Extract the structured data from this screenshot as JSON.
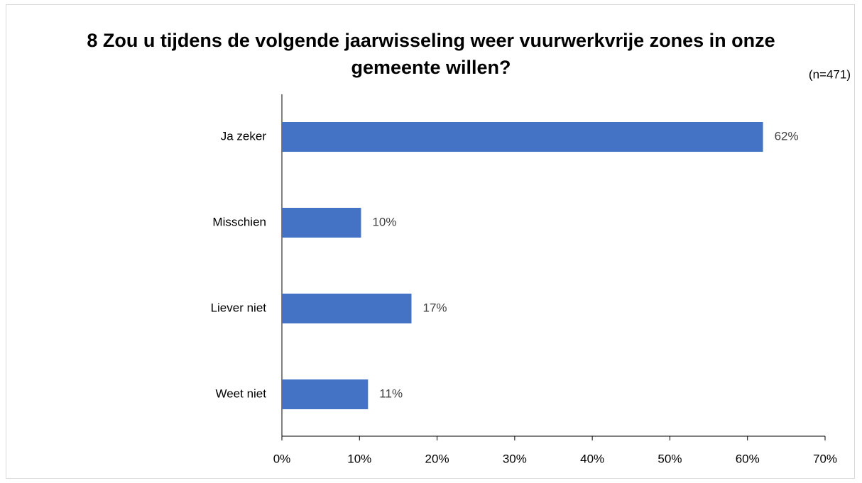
{
  "chart_data": {
    "type": "bar",
    "orientation": "horizontal",
    "title": "8 Zou u tijdens de volgende jaarwisseling weer vuurwerkvrije zones in onze gemeente willen?",
    "subtitle": "(n=471)",
    "categories": [
      "Ja zeker",
      "Misschien",
      "Liever niet",
      "Weet niet"
    ],
    "values": [
      62.0,
      10.2,
      16.7,
      11.1
    ],
    "value_labels": [
      "62%",
      "10%",
      "17%",
      "11%"
    ],
    "color": "#4472c4",
    "xlim": [
      0,
      70
    ],
    "xticks": [
      {
        "value": 0,
        "label": "0%"
      },
      {
        "value": 10,
        "label": "10%"
      },
      {
        "value": 20,
        "label": "20%"
      },
      {
        "value": 30,
        "label": "30%"
      },
      {
        "value": 40,
        "label": "40%"
      },
      {
        "value": 50,
        "label": "50%"
      },
      {
        "value": 60,
        "label": "60%"
      },
      {
        "value": 70,
        "label": "70%"
      }
    ]
  }
}
